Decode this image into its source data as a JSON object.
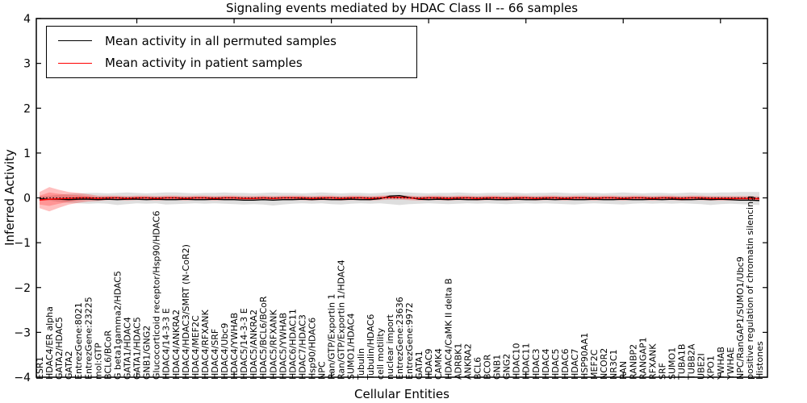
{
  "chart_data": {
    "type": "line",
    "title": "Signaling events mediated by HDAC Class II -- 66 samples",
    "xlabel": "Cellular Entities",
    "ylabel": "Inferred Activity",
    "ylim": [
      -4,
      4
    ],
    "yticks": [
      4,
      3,
      2,
      1,
      0,
      -1,
      -2,
      -3,
      -4
    ],
    "ytick_labels": [
      "4",
      "3",
      "2",
      "1",
      "0",
      "−1",
      "−2",
      "−3",
      "−4"
    ],
    "x_major_ticks_every": 10,
    "grid": false,
    "legend": {
      "position": "upper left",
      "entries": [
        {
          "label": "Mean activity in all permuted samples",
          "color": "#000000"
        },
        {
          "label": "Mean activity in patient samples",
          "color": "#ff0000"
        }
      ]
    },
    "colors": {
      "permuted_line": "#000000",
      "patient_line": "#ff0000",
      "permuted_band_fill": "rgba(0,0,0,0.13)",
      "patient_band_outer_fill": "rgba(255,0,0,0.25)",
      "patient_band_inner_fill": "rgba(255,0,0,0.22)",
      "zero_line": "#000000",
      "axis": "#000000"
    },
    "categories": [
      "ESR1",
      "HDAC4/ER alpha",
      "GATA2/HDAC5",
      "GATA2",
      "EntrezGene:8021",
      "EntrezGene:23225",
      "mol:GTP",
      "BCL6/BCoR",
      "G beta1gamma2/HDAC5",
      "GATA1/HDAC4",
      "GATA1/HDAC5",
      "GNB1/GNG2",
      "Glucocorticoid receptor/Hsp90/HDAC6",
      "HDAC4/14-3-3 E",
      "HDAC4/ANKRA2",
      "HDAC4/HDAC3/SMRT (N-CoR2)",
      "HDAC4/MEF2C",
      "HDAC4/RFXANK",
      "HDAC4/SRF",
      "HDAC4/Ubc9",
      "HDAC4/YWHAB",
      "HDAC5/14-3-3 E",
      "HDAC5/ANKRA2",
      "HDAC5/BCL6/BCoR",
      "HDAC5/RFXANK",
      "HDAC5/YWHAB",
      "HDAC6/HDAC11",
      "HDAC7/HDAC3",
      "Hsp90/HDAC6",
      "NPC",
      "Ran/GTP/Exportin 1",
      "Ran/GTP/Exportin 1/HDAC4",
      "SUMO1/HDAC4",
      "Tubulin",
      "Tubulin/HDAC6",
      "cell motility",
      "nuclear import",
      "EntrezGene:23636",
      "EntrezGene:9972",
      "GATA1",
      "HDAC9",
      "CAMK4",
      "HDAC4/CaMK II delta B",
      "ADRBK1",
      "ANKRA2",
      "BCL6",
      "BCOR",
      "GNB1",
      "GNG2",
      "HDAC10",
      "HDAC11",
      "HDAC3",
      "HDAC4",
      "HDAC5",
      "HDAC6",
      "HDAC7",
      "HSP90AA1",
      "MEF2C",
      "NCOR2",
      "NR3C1",
      "RAN",
      "RANBP2",
      "RANGAP1",
      "RFXANK",
      "SRF",
      "SUMO1",
      "TUBA1B",
      "TUBB2A",
      "UBE2I",
      "XPO1",
      "YWHAB",
      "YWHAE",
      "NPC/RanGAP1/SUMO1/Ubc9",
      "positive regulation of chromatin silencing",
      "Histones"
    ],
    "series": [
      {
        "name": "Mean activity in all permuted samples",
        "color": "#000000",
        "values": [
          -0.02,
          -0.03,
          -0.03,
          -0.04,
          -0.03,
          -0.03,
          -0.04,
          -0.03,
          -0.04,
          -0.03,
          -0.03,
          -0.04,
          -0.03,
          -0.04,
          -0.04,
          -0.03,
          -0.04,
          -0.04,
          -0.03,
          -0.04,
          -0.04,
          -0.05,
          -0.05,
          -0.04,
          -0.05,
          -0.04,
          -0.04,
          -0.03,
          -0.04,
          -0.03,
          -0.04,
          -0.04,
          -0.03,
          -0.04,
          -0.04,
          -0.02,
          0.04,
          0.05,
          0.01,
          -0.03,
          -0.04,
          -0.03,
          -0.04,
          -0.03,
          -0.04,
          -0.04,
          -0.03,
          -0.04,
          -0.04,
          -0.03,
          -0.04,
          -0.04,
          -0.03,
          -0.04,
          -0.03,
          -0.04,
          -0.04,
          -0.03,
          -0.04,
          -0.04,
          -0.03,
          -0.04,
          -0.04,
          -0.03,
          -0.04,
          -0.03,
          -0.04,
          -0.04,
          -0.03,
          -0.04,
          -0.03,
          -0.04,
          -0.05,
          -0.05,
          -0.06
        ]
      },
      {
        "name": "Mean activity in patient samples",
        "color": "#ff0000",
        "values": [
          -0.05,
          -0.03,
          -0.02,
          -0.01,
          0,
          0,
          -0.01,
          0,
          0,
          -0.01,
          0,
          0,
          -0.01,
          0,
          0,
          -0.01,
          0,
          0,
          -0.01,
          0,
          0,
          -0.01,
          -0.01,
          0,
          -0.01,
          0,
          0,
          0,
          -0.01,
          0,
          0,
          -0.01,
          0,
          0,
          -0.01,
          0,
          0.01,
          0.01,
          0,
          -0.01,
          0,
          0,
          -0.01,
          0,
          0,
          -0.01,
          0,
          0,
          -0.01,
          0,
          0,
          -0.01,
          0,
          0,
          -0.01,
          0,
          0,
          -0.01,
          0,
          0,
          -0.01,
          0,
          0,
          -0.01,
          0,
          0,
          -0.01,
          0,
          0,
          -0.01,
          -0.01,
          -0.01,
          -0.01,
          -0.01,
          -0.02
        ]
      }
    ],
    "bands": {
      "permuted_range": {
        "fill": "rgba(0,0,0,0.13)",
        "upper": [
          0.03,
          0.05,
          0.07,
          0.09,
          0.1,
          0.11,
          0.11,
          0.1,
          0.11,
          0.12,
          0.11,
          0.1,
          0.11,
          0.12,
          0.12,
          0.11,
          0.1,
          0.11,
          0.11,
          0.12,
          0.11,
          0.11,
          0.1,
          0.11,
          0.12,
          0.11,
          0.11,
          0.1,
          0.11,
          0.12,
          0.11,
          0.1,
          0.11,
          0.11,
          0.1,
          0.11,
          0.13,
          0.13,
          0.12,
          0.11,
          0.1,
          0.11,
          0.11,
          0.12,
          0.11,
          0.1,
          0.11,
          0.11,
          0.12,
          0.11,
          0.1,
          0.11,
          0.11,
          0.12,
          0.11,
          0.1,
          0.11,
          0.11,
          0.1,
          0.11,
          0.12,
          0.11,
          0.1,
          0.11,
          0.11,
          0.1,
          0.11,
          0.12,
          0.11,
          0.11,
          0.12,
          0.12,
          0.13,
          0.13,
          0.13
        ],
        "lower": [
          -0.03,
          -0.06,
          -0.09,
          -0.11,
          -0.12,
          -0.13,
          -0.12,
          -0.13,
          -0.16,
          -0.14,
          -0.12,
          -0.13,
          -0.12,
          -0.15,
          -0.14,
          -0.13,
          -0.12,
          -0.13,
          -0.12,
          -0.13,
          -0.14,
          -0.15,
          -0.14,
          -0.15,
          -0.17,
          -0.15,
          -0.13,
          -0.12,
          -0.13,
          -0.12,
          -0.14,
          -0.15,
          -0.13,
          -0.12,
          -0.13,
          -0.12,
          -0.14,
          -0.16,
          -0.14,
          -0.13,
          -0.12,
          -0.13,
          -0.14,
          -0.13,
          -0.12,
          -0.13,
          -0.12,
          -0.13,
          -0.14,
          -0.13,
          -0.12,
          -0.13,
          -0.12,
          -0.13,
          -0.14,
          -0.15,
          -0.13,
          -0.12,
          -0.13,
          -0.14,
          -0.15,
          -0.13,
          -0.12,
          -0.13,
          -0.12,
          -0.13,
          -0.12,
          -0.13,
          -0.14,
          -0.16,
          -0.14,
          -0.13,
          -0.14,
          -0.15,
          -0.16
        ]
      },
      "patient_range_outer": {
        "fill": "rgba(255,0,0,0.25)",
        "halfwidth": [
          0.18,
          0.27,
          0.2,
          0.14,
          0.11,
          0.08,
          0.06,
          0.05,
          0.05,
          0.05,
          0.05,
          0.05,
          0.05,
          0.05,
          0.05,
          0.05,
          0.05,
          0.05,
          0.05,
          0.05,
          0.05,
          0.05,
          0.05,
          0.05,
          0.05,
          0.05,
          0.05,
          0.05,
          0.05,
          0.05,
          0.05,
          0.05,
          0.05,
          0.05,
          0.05,
          0.05,
          0.05,
          0.05,
          0.05,
          0.05,
          0.05,
          0.05,
          0.05,
          0.05,
          0.05,
          0.05,
          0.05,
          0.05,
          0.05,
          0.05,
          0.05,
          0.05,
          0.05,
          0.05,
          0.05,
          0.05,
          0.05,
          0.05,
          0.05,
          0.05,
          0.05,
          0.05,
          0.05,
          0.05,
          0.05,
          0.05,
          0.05,
          0.05,
          0.05,
          0.05,
          0.05,
          0.05,
          0.05,
          0.05,
          0.05
        ]
      },
      "patient_range_inner": {
        "fill": "rgba(255,0,0,0.22)",
        "halfwidth": [
          0.1,
          0.15,
          0.11,
          0.08,
          0.06,
          0.04,
          0.03,
          0.02,
          0.02,
          0.02,
          0.02,
          0.02,
          0.02,
          0.02,
          0.02,
          0.02,
          0.02,
          0.02,
          0.02,
          0.02,
          0.02,
          0.02,
          0.02,
          0.02,
          0.02,
          0.02,
          0.02,
          0.02,
          0.02,
          0.02,
          0.02,
          0.02,
          0.02,
          0.02,
          0.02,
          0.02,
          0.02,
          0.02,
          0.02,
          0.02,
          0.02,
          0.02,
          0.02,
          0.02,
          0.02,
          0.02,
          0.02,
          0.02,
          0.02,
          0.02,
          0.02,
          0.02,
          0.02,
          0.02,
          0.02,
          0.02,
          0.02,
          0.02,
          0.02,
          0.02,
          0.02,
          0.02,
          0.02,
          0.02,
          0.02,
          0.02,
          0.02,
          0.02,
          0.02,
          0.02,
          0.02,
          0.02,
          0.02,
          0.02,
          0.02
        ]
      }
    },
    "zero_line": {
      "value": 0,
      "style": "dotted"
    }
  }
}
